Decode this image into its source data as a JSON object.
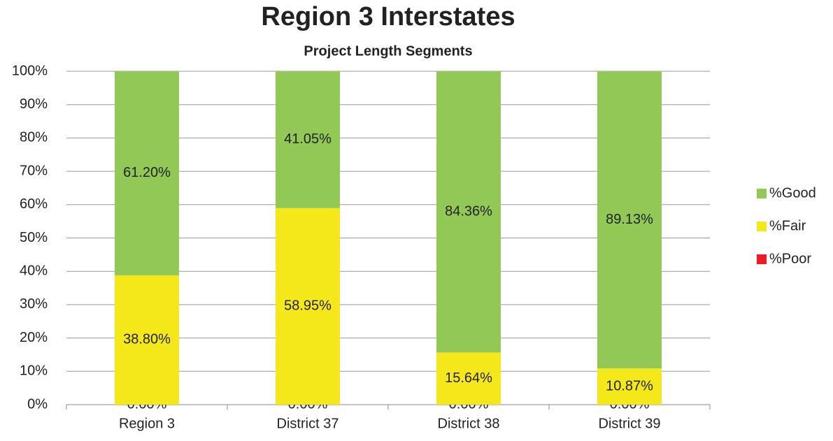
{
  "chart_data": {
    "type": "stacked_bar",
    "title": "Region 3 Interstates",
    "subtitle": "Project Length Segments",
    "categories": [
      "Region 3",
      "District 37",
      "District 38",
      "District 39"
    ],
    "series": [
      {
        "name": "%Poor",
        "color": "#ed1c24",
        "values": [
          0,
          0,
          0,
          0
        ],
        "value_labels": [
          "0.00%",
          "0.00%",
          "0.00%",
          "0.00%"
        ]
      },
      {
        "name": "%Fair",
        "color": "#f4e81a",
        "values": [
          38.8,
          58.95,
          15.64,
          10.87
        ],
        "value_labels": [
          "38.80%",
          "58.95%",
          "15.64%",
          "10.87%"
        ]
      },
      {
        "name": "%Good",
        "color": "#92c855",
        "values": [
          61.2,
          41.05,
          84.36,
          89.13
        ],
        "value_labels": [
          "61.20%",
          "41.05%",
          "84.36%",
          "89.13%"
        ]
      }
    ],
    "ylim": [
      0,
      100
    ],
    "yticks": [
      {
        "value": 0,
        "label": "0%"
      },
      {
        "value": 10,
        "label": "10%"
      },
      {
        "value": 20,
        "label": "20%"
      },
      {
        "value": 30,
        "label": "30%"
      },
      {
        "value": 40,
        "label": "40%"
      },
      {
        "value": 50,
        "label": "50%"
      },
      {
        "value": 60,
        "label": "60%"
      },
      {
        "value": 70,
        "label": "70%"
      },
      {
        "value": 80,
        "label": "80%"
      },
      {
        "value": 90,
        "label": "90%"
      },
      {
        "value": 100,
        "label": "100%"
      }
    ],
    "grid": true,
    "legend": "right"
  }
}
